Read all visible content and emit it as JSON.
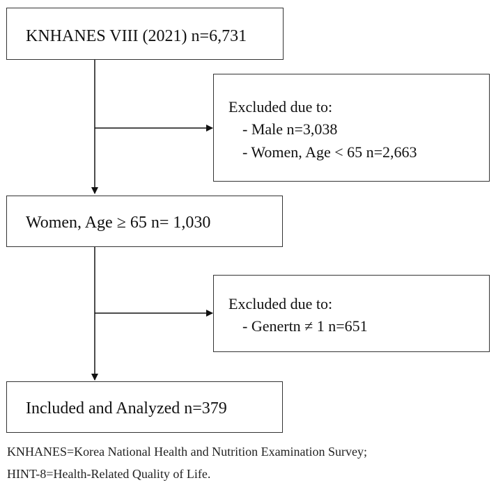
{
  "flow": {
    "source": "KNHANES VIII (2021) n=6,731",
    "exclusion_1": {
      "heading": "Excluded due to:",
      "items": [
        "- Male n=3,038",
        "- Women, Age < 65  n=2,663"
      ]
    },
    "subgroup": "Women, Age ≥ 65  n= 1,030",
    "exclusion_2": {
      "heading": "Excluded due to:",
      "items": [
        "- Genertn ≠ 1  n=651"
      ]
    },
    "final": "Included and Analyzed  n=379"
  },
  "footnotes": [
    "KNHANES=Korea National Health and Nutrition Examination Survey;",
    "HINT-8=Health-Related Quality of Life."
  ]
}
